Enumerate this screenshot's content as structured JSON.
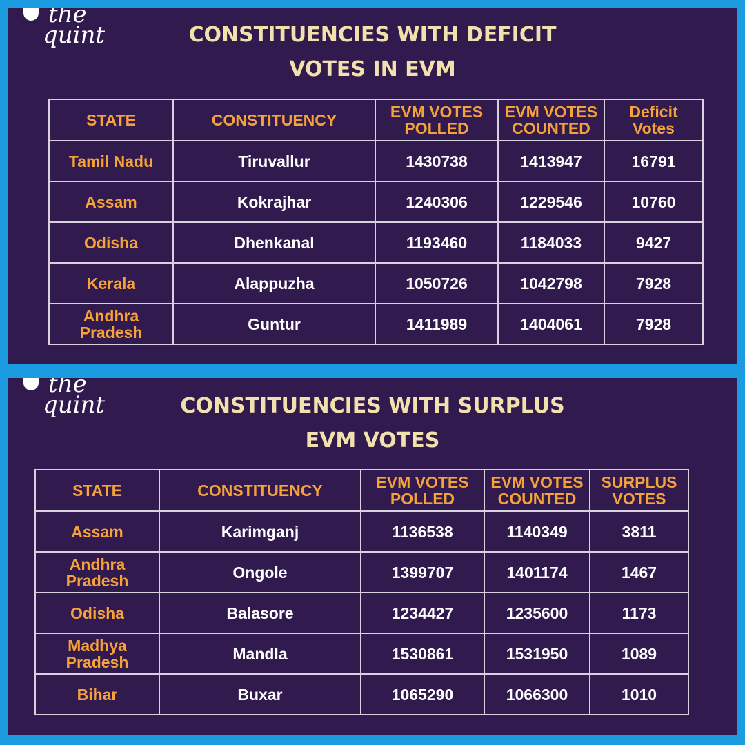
{
  "panels": [
    {
      "logo": [
        "the",
        "quint"
      ],
      "title_lines": [
        "CONSTITUENCIES WITH DEFICIT",
        "VOTES IN EVM"
      ],
      "table": {
        "header": [
          "STATE",
          "CONSTITUENCY",
          "EVM VOTES POLLED",
          "EVM VOTES COUNTED",
          "Deficit Votes"
        ],
        "rows": [
          [
            "Tamil Nadu",
            "Tiruvallur",
            1430738,
            1413947,
            16791
          ],
          [
            "Assam",
            "Kokrajhar",
            1240306,
            1229546,
            10760
          ],
          [
            "Odisha",
            "Dhenkanal",
            1193460,
            1184033,
            9427
          ],
          [
            "Kerala",
            "Alappuzha",
            1050726,
            1042798,
            7928
          ],
          [
            "Andhra Pradesh",
            "Guntur",
            1411989,
            1404061,
            7928
          ]
        ]
      }
    },
    {
      "logo": [
        "the",
        "quint"
      ],
      "title_lines": [
        "CONSTITUENCIES WITH SURPLUS",
        "EVM VOTES"
      ],
      "table": {
        "header": [
          "STATE",
          "CONSTITUENCY",
          "EVM VOTES POLLED",
          "EVM VOTES COUNTED",
          "SURPLUS VOTES"
        ],
        "rows": [
          [
            "Assam",
            "Karimganj",
            1136538,
            1140349,
            3811
          ],
          [
            "Andhra Pradesh",
            "Ongole",
            1399707,
            1401174,
            1467
          ],
          [
            "Odisha",
            "Balasore",
            1234427,
            1235600,
            1173
          ],
          [
            "Madhya Pradesh",
            "Mandla",
            1530861,
            1531950,
            1089
          ],
          [
            "Bihar",
            "Buxar",
            1065290,
            1066300,
            1010
          ]
        ]
      }
    }
  ]
}
